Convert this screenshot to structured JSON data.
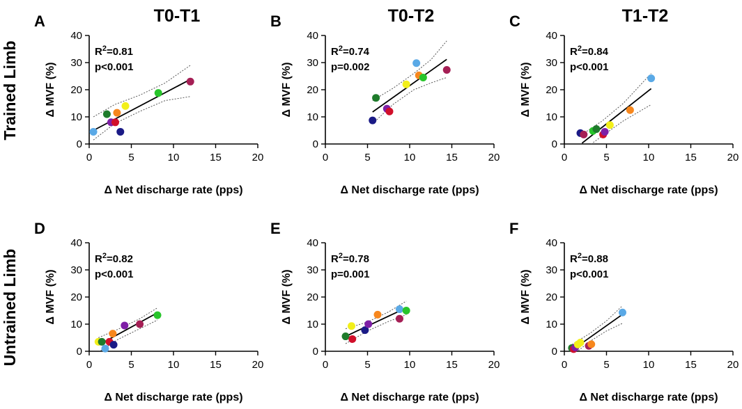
{
  "figure": {
    "column_titles": [
      "T0-T1",
      "T0-T2",
      "T1-T2"
    ],
    "row_titles": [
      "Trained Limb",
      "Untrained Limb"
    ]
  },
  "palette": {
    "light_blue": "#5aa9e6",
    "dark_green": "#1e7b2b",
    "purple": "#7e1fa6",
    "red": "#d10f2a",
    "orange": "#f7871d",
    "yellow": "#f2ef1a",
    "navy": "#1a1a86",
    "green": "#28c52b",
    "maroon": "#a51f55"
  },
  "chart_data": [
    {
      "panel": "A",
      "type": "scatter",
      "xlabel": "Δ Net discharge rate (pps)",
      "ylabel": "Δ MVF (%)",
      "xlim": [
        0,
        20
      ],
      "ylim": [
        0,
        40
      ],
      "xticks": [
        "0",
        "5",
        "10",
        "15",
        "20"
      ],
      "yticks": [
        "0",
        "10",
        "20",
        "30",
        "40"
      ],
      "r2_label": "R",
      "r2_value": "=0.81",
      "p_text": "p<0.001",
      "points": [
        {
          "x": 0.5,
          "y": 4.5,
          "color": "light_blue"
        },
        {
          "x": 2.1,
          "y": 11,
          "color": "dark_green"
        },
        {
          "x": 2.6,
          "y": 8,
          "color": "purple"
        },
        {
          "x": 3.1,
          "y": 8,
          "color": "red"
        },
        {
          "x": 3.3,
          "y": 11.5,
          "color": "orange"
        },
        {
          "x": 4.3,
          "y": 14,
          "color": "yellow"
        },
        {
          "x": 3.7,
          "y": 4.5,
          "color": "navy"
        },
        {
          "x": 8.2,
          "y": 18.8,
          "color": "green"
        },
        {
          "x": 12,
          "y": 23,
          "color": "maroon"
        }
      ],
      "fit": {
        "x": [
          0.5,
          12
        ],
        "y": [
          5,
          23.8
        ]
      },
      "ci_upper": [
        [
          0.5,
          10
        ],
        [
          3,
          14.5
        ],
        [
          6,
          18
        ],
        [
          9,
          22.5
        ],
        [
          12,
          29
        ]
      ],
      "ci_lower": [
        [
          0.5,
          1.5
        ],
        [
          3,
          7.5
        ],
        [
          6,
          12
        ],
        [
          9,
          16
        ],
        [
          12,
          17.5
        ]
      ]
    },
    {
      "panel": "B",
      "type": "scatter",
      "xlabel": "Δ Net discharge rate (pps)",
      "ylabel": "Δ MVF (%)",
      "xlim": [
        0,
        20
      ],
      "ylim": [
        0,
        40
      ],
      "xticks": [
        "0",
        "5",
        "10",
        "15",
        "20"
      ],
      "yticks": [
        "0",
        "10",
        "20",
        "30",
        "40"
      ],
      "r2_label": "R",
      "r2_value": "=0.74",
      "p_text": "p=0.002",
      "points": [
        {
          "x": 5.6,
          "y": 8.7,
          "color": "navy"
        },
        {
          "x": 6,
          "y": 17,
          "color": "dark_green"
        },
        {
          "x": 7.3,
          "y": 13,
          "color": "purple"
        },
        {
          "x": 7.6,
          "y": 12,
          "color": "red"
        },
        {
          "x": 9.6,
          "y": 22,
          "color": "yellow"
        },
        {
          "x": 10.8,
          "y": 29.8,
          "color": "light_blue"
        },
        {
          "x": 11.1,
          "y": 25.3,
          "color": "orange"
        },
        {
          "x": 11.6,
          "y": 24.5,
          "color": "green"
        },
        {
          "x": 14.4,
          "y": 27.3,
          "color": "maroon"
        }
      ],
      "fit": {
        "x": [
          5.6,
          14.4
        ],
        "y": [
          11.8,
          31.2
        ]
      },
      "ci_upper": [
        [
          5.6,
          16
        ],
        [
          8,
          20.5
        ],
        [
          10.5,
          26
        ],
        [
          12.5,
          31
        ],
        [
          14.4,
          38
        ]
      ],
      "ci_lower": [
        [
          5.6,
          7.5
        ],
        [
          8,
          14.5
        ],
        [
          10.5,
          20
        ],
        [
          12.5,
          22.5
        ],
        [
          14.4,
          24.5
        ]
      ]
    },
    {
      "panel": "C",
      "type": "scatter",
      "xlabel": "Δ Net discharge rate (pps)",
      "ylabel": "Δ MVF (%)",
      "xlim": [
        0,
        20
      ],
      "ylim": [
        0,
        40
      ],
      "xticks": [
        "0",
        "5",
        "10",
        "15",
        "20"
      ],
      "yticks": [
        "0",
        "10",
        "20",
        "30",
        "40"
      ],
      "r2_label": "R",
      "r2_value": "=0.84",
      "p_text": "p<0.001",
      "points": [
        {
          "x": 1.9,
          "y": 4,
          "color": "navy"
        },
        {
          "x": 2.3,
          "y": 3.5,
          "color": "maroon"
        },
        {
          "x": 3.4,
          "y": 4.8,
          "color": "green"
        },
        {
          "x": 3.8,
          "y": 5.5,
          "color": "dark_green"
        },
        {
          "x": 4.6,
          "y": 3.5,
          "color": "red"
        },
        {
          "x": 4.8,
          "y": 4.5,
          "color": "purple"
        },
        {
          "x": 5.4,
          "y": 7,
          "color": "yellow"
        },
        {
          "x": 7.8,
          "y": 12.5,
          "color": "orange"
        },
        {
          "x": 10.3,
          "y": 24.2,
          "color": "light_blue"
        }
      ],
      "fit": {
        "x": [
          2.1,
          10.3
        ],
        "y": [
          0.3,
          20.4
        ]
      },
      "ci_upper": [
        [
          2.1,
          3.5
        ],
        [
          4.5,
          8.5
        ],
        [
          7,
          15
        ],
        [
          10.3,
          26
        ]
      ],
      "ci_lower": [
        [
          2.1,
          -2.5
        ],
        [
          4.5,
          3
        ],
        [
          7,
          8.5
        ],
        [
          10.3,
          14.5
        ]
      ]
    },
    {
      "panel": "D",
      "type": "scatter",
      "xlabel": "Δ Net discharge rate (pps)",
      "ylabel": "Δ MVF (%)",
      "xlim": [
        0,
        20
      ],
      "ylim": [
        0,
        40
      ],
      "xticks": [
        "0",
        "5",
        "10",
        "15",
        "20"
      ],
      "yticks": [
        "0",
        "10",
        "20",
        "30",
        "40"
      ],
      "r2_label": "R",
      "r2_value": "=0.82",
      "p_text": "p<0.001",
      "points": [
        {
          "x": 1.1,
          "y": 3.5,
          "color": "yellow"
        },
        {
          "x": 1.5,
          "y": 3.5,
          "color": "dark_green"
        },
        {
          "x": 1.9,
          "y": 1,
          "color": "light_blue"
        },
        {
          "x": 2.4,
          "y": 3.5,
          "color": "red"
        },
        {
          "x": 2.8,
          "y": 6.5,
          "color": "orange"
        },
        {
          "x": 2.9,
          "y": 2.4,
          "color": "navy"
        },
        {
          "x": 4.2,
          "y": 9.5,
          "color": "purple"
        },
        {
          "x": 6,
          "y": 10,
          "color": "maroon"
        },
        {
          "x": 8.1,
          "y": 13.3,
          "color": "green"
        }
      ],
      "fit": {
        "x": [
          1.1,
          8.1
        ],
        "y": [
          2.3,
          14.2
        ]
      },
      "ci_upper": [
        [
          1.1,
          5
        ],
        [
          3.5,
          8.2
        ],
        [
          6,
          12
        ],
        [
          8.1,
          16
        ]
      ],
      "ci_lower": [
        [
          1.1,
          -0.3
        ],
        [
          3.5,
          4.5
        ],
        [
          6,
          8.3
        ],
        [
          8.1,
          11.5
        ]
      ]
    },
    {
      "panel": "E",
      "type": "scatter",
      "xlabel": "Δ Net discharge rate (pps)",
      "ylabel": "Δ MVF (%)",
      "xlim": [
        0,
        20
      ],
      "ylim": [
        0,
        40
      ],
      "xticks": [
        "0",
        "5",
        "10",
        "15",
        "20"
      ],
      "yticks": [
        "0",
        "10",
        "20",
        "30",
        "40"
      ],
      "r2_label": "R",
      "r2_value": "=0.78",
      "p_text": "p=0.001",
      "points": [
        {
          "x": 2.4,
          "y": 5.5,
          "color": "dark_green"
        },
        {
          "x": 3.2,
          "y": 4.5,
          "color": "red"
        },
        {
          "x": 3.1,
          "y": 9.3,
          "color": "yellow"
        },
        {
          "x": 4.7,
          "y": 7.8,
          "color": "navy"
        },
        {
          "x": 5.1,
          "y": 10,
          "color": "purple"
        },
        {
          "x": 6.2,
          "y": 13.5,
          "color": "orange"
        },
        {
          "x": 8.8,
          "y": 12,
          "color": "maroon"
        },
        {
          "x": 8.8,
          "y": 15.5,
          "color": "light_blue"
        },
        {
          "x": 9.6,
          "y": 15,
          "color": "green"
        }
      ],
      "fit": {
        "x": [
          2.4,
          9.6
        ],
        "y": [
          5.5,
          16
        ]
      },
      "ci_upper": [
        [
          2.4,
          8.3
        ],
        [
          5,
          10.8
        ],
        [
          7.5,
          14.5
        ],
        [
          9.6,
          18.5
        ]
      ],
      "ci_lower": [
        [
          2.4,
          2.8
        ],
        [
          5,
          7.5
        ],
        [
          7.5,
          11
        ],
        [
          9.6,
          13.5
        ]
      ]
    },
    {
      "panel": "F",
      "type": "scatter",
      "xlabel": "Δ Net discharge rate (pps)",
      "ylabel": "Δ MVF (%)",
      "xlim": [
        0,
        20
      ],
      "ylim": [
        0,
        40
      ],
      "xticks": [
        "0",
        "5",
        "10",
        "15",
        "20"
      ],
      "yticks": [
        "0",
        "10",
        "20",
        "30",
        "40"
      ],
      "r2_label": "R",
      "r2_value": "=0.88",
      "p_text": "p<0.001",
      "points": [
        {
          "x": 0.9,
          "y": 1.2,
          "color": "dark_green"
        },
        {
          "x": 1.1,
          "y": 0.8,
          "color": "red"
        },
        {
          "x": 1.3,
          "y": 1.4,
          "color": "purple"
        },
        {
          "x": 1.6,
          "y": 2.5,
          "color": "yellow"
        },
        {
          "x": 1.9,
          "y": 3.2,
          "color": "yellow"
        },
        {
          "x": 2.9,
          "y": 2,
          "color": "maroon"
        },
        {
          "x": 3.2,
          "y": 2.6,
          "color": "orange"
        },
        {
          "x": 6.9,
          "y": 14.3,
          "color": "light_blue"
        }
      ],
      "fit": {
        "x": [
          0.9,
          6.9
        ],
        "y": [
          0.4,
          13.6
        ]
      },
      "ci_upper": [
        [
          0.9,
          2.5
        ],
        [
          3,
          6.5
        ],
        [
          5,
          11.2
        ],
        [
          6.9,
          16.8
        ]
      ],
      "ci_lower": [
        [
          0.9,
          -1.7
        ],
        [
          3,
          3.6
        ],
        [
          5,
          7.5
        ],
        [
          6.9,
          10.3
        ]
      ]
    }
  ]
}
